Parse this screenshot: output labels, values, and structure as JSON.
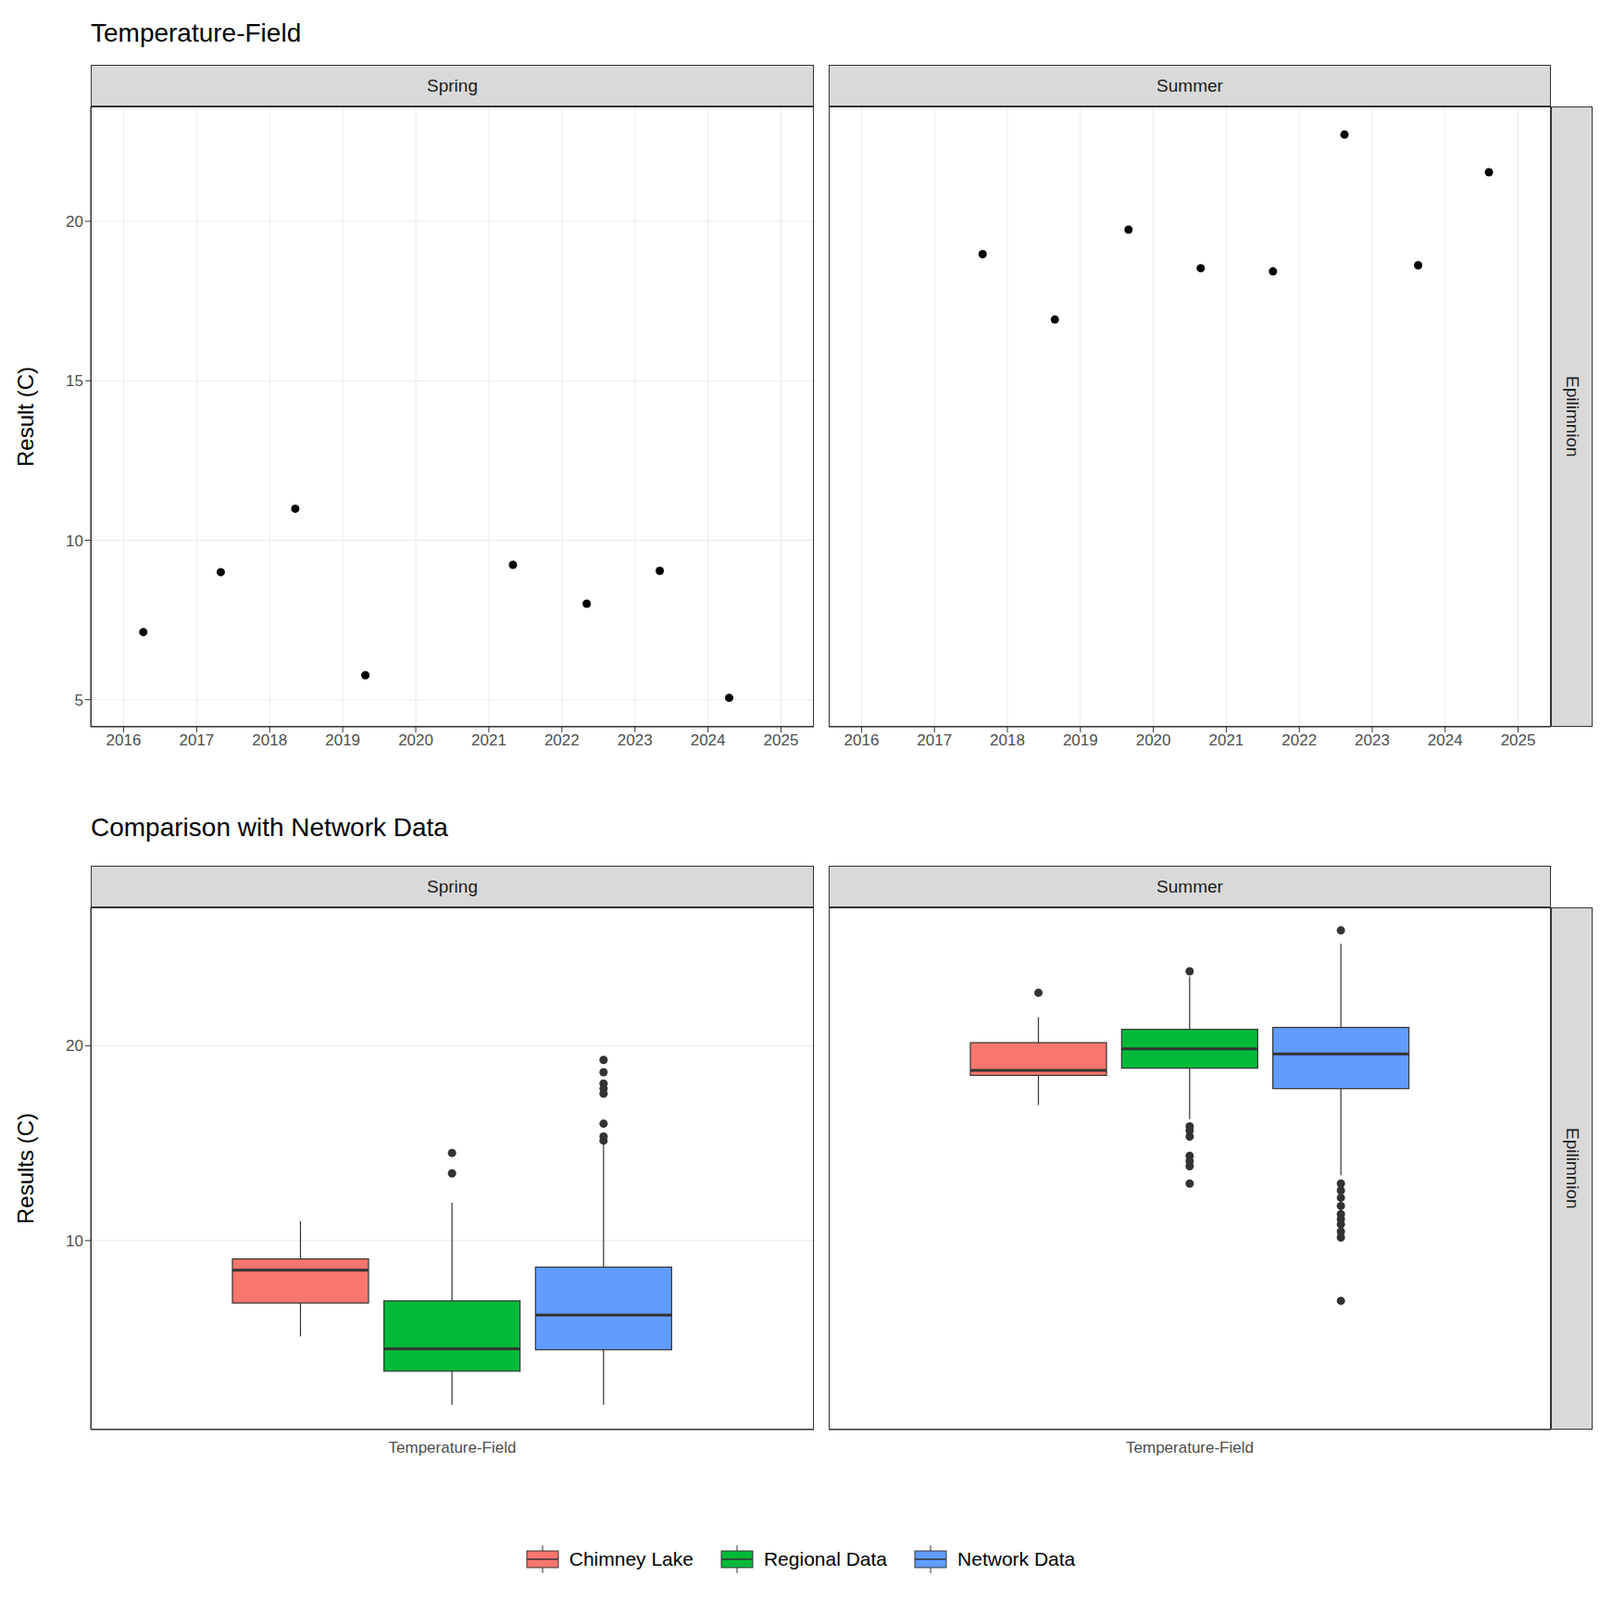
{
  "chart_data": [
    {
      "type": "scatter",
      "title": "Temperature-Field",
      "facet": "Spring",
      "y_label": "Result (C)",
      "x": [
        2016.27,
        2017.33,
        2018.35,
        2019.31,
        2021.33,
        2022.34,
        2023.34,
        2024.29
      ],
      "values": [
        7.12,
        9.0,
        10.99,
        5.77,
        9.23,
        8.01,
        9.04,
        5.06
      ],
      "color": "#000000",
      "xlim": [
        2015.55,
        2025.45
      ],
      "xticks": [
        2016,
        2017,
        2018,
        2019,
        2020,
        2021,
        2022,
        2023,
        2024,
        2025
      ],
      "ylim": [
        4.15,
        23.6
      ],
      "yticks": [
        5,
        10,
        15,
        20
      ],
      "grid": true
    },
    {
      "type": "scatter",
      "facet": "Summer",
      "row_strip": "Epilimnion",
      "x": [
        2017.66,
        2018.65,
        2019.66,
        2020.65,
        2021.64,
        2022.62,
        2023.63,
        2024.6
      ],
      "values": [
        18.97,
        16.92,
        19.74,
        18.53,
        18.43,
        22.72,
        18.62,
        21.54
      ],
      "color": "#000000",
      "xlim": [
        2015.55,
        2025.45
      ],
      "xticks": [
        2016,
        2017,
        2018,
        2019,
        2020,
        2021,
        2022,
        2023,
        2024,
        2025
      ],
      "ylim": [
        4.15,
        23.6
      ],
      "yticks": [
        5,
        10,
        15,
        20
      ],
      "grid": true,
      "tick_labels": "x"
    },
    {
      "type": "box",
      "title": "Comparison with Network Data",
      "facet": "Spring",
      "y_label": "Results (C)",
      "x_label": "Temperature-Field",
      "legend": "bottom",
      "grid": true,
      "ylim": [
        0.3,
        27.1
      ],
      "yticks": [
        10,
        20
      ],
      "tick_labels": "y",
      "series": [
        {
          "name": "Chimney Lake",
          "color": "#F8766D",
          "whisker_low": 5.08,
          "q1": 6.8,
          "median": 8.48,
          "q3": 9.06,
          "whisker_high": 11.0,
          "outliers": []
        },
        {
          "name": "Regional Data",
          "color": "#00BA38",
          "whisker_low": 1.57,
          "q1": 3.3,
          "median": 4.45,
          "q3": 6.91,
          "whisker_high": 11.94,
          "outliers": [
            14.5,
            13.45
          ]
        },
        {
          "name": "Network Data",
          "color": "#619CFF",
          "whisker_low": 1.57,
          "q1": 4.4,
          "median": 6.18,
          "q3": 8.64,
          "whisker_high": 14.92,
          "outliers": [
            19.27,
            18.64,
            18.06,
            17.8,
            17.54,
            16.0,
            15.34,
            15.13
          ]
        }
      ]
    },
    {
      "type": "box",
      "facet": "Summer",
      "row_strip": "Epilimnion",
      "x_label": "Temperature-Field",
      "grid": true,
      "ylim": [
        0.3,
        27.1
      ],
      "yticks": [
        10,
        20
      ],
      "tick_labels": false,
      "series": [
        {
          "name": "Chimney Lake",
          "color": "#F8766D",
          "whisker_low": 16.96,
          "q1": 18.48,
          "median": 18.74,
          "q3": 20.16,
          "whisker_high": 21.47,
          "outliers": [
            22.72
          ]
        },
        {
          "name": "Regional Data",
          "color": "#00BA38",
          "whisker_low": 16.23,
          "q1": 18.85,
          "median": 19.84,
          "q3": 20.84,
          "whisker_high": 23.56,
          "outliers": [
            23.82,
            15.86,
            15.65,
            15.34,
            14.35,
            14.08,
            13.82,
            12.93
          ]
        },
        {
          "name": "Network Data",
          "color": "#619CFF",
          "whisker_low": 13.35,
          "q1": 17.8,
          "median": 19.58,
          "q3": 20.94,
          "whisker_high": 25.24,
          "outliers": [
            25.92,
            12.93,
            12.57,
            12.2,
            11.78,
            11.36,
            11.1,
            10.84,
            10.47,
            10.16,
            6.91
          ]
        }
      ]
    }
  ]
}
